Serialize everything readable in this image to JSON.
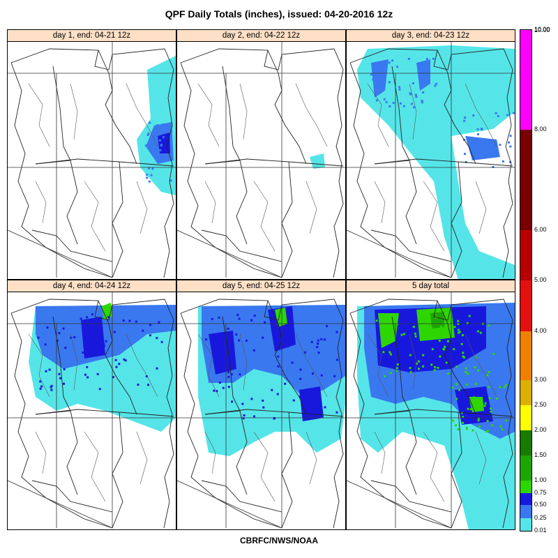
{
  "title": "QPF Daily Totals (inches),  issued: 04-20-2016 12z",
  "footer": "CBRFC/NWS/NOAA",
  "panels": [
    {
      "label": "day 1, end: 04-21 12z",
      "coverage": "light"
    },
    {
      "label": "day 2, end: 04-22 12z",
      "coverage": "minimal"
    },
    {
      "label": "day 3, end: 04-23 12z",
      "coverage": "moderate"
    },
    {
      "label": "day 4, end: 04-24 12z",
      "coverage": "moderate"
    },
    {
      "label": "day 5, end: 04-25 12z",
      "coverage": "heavy"
    },
    {
      "label": "5 day total",
      "coverage": "heaviest"
    }
  ],
  "legend": {
    "bands": [
      {
        "label": "0.01",
        "color": "#55e5e8"
      },
      {
        "label": "0.25",
        "color": "#3a78ef"
      },
      {
        "label": "0.50",
        "color": "#1818dd"
      },
      {
        "label": "0.75",
        "color": "#2ed600"
      },
      {
        "label": "1.00",
        "color": "#1ea600"
      },
      {
        "label": "1.50",
        "color": "#197a00"
      },
      {
        "label": "2.00",
        "color": "#ffff00"
      },
      {
        "label": "2.50",
        "color": "#dcb000"
      },
      {
        "label": "3.00",
        "color": "#f08000"
      },
      {
        "label": "4.00",
        "color": "#e41010"
      },
      {
        "label": "5.00",
        "color": "#b80000"
      },
      {
        "label": "6.00",
        "color": "#780000"
      },
      {
        "label": "8.00",
        "color": "#ff00ff"
      },
      {
        "label": "10.00",
        "color": "#7a3ec8"
      }
    ],
    "top_label": "10.00"
  }
}
